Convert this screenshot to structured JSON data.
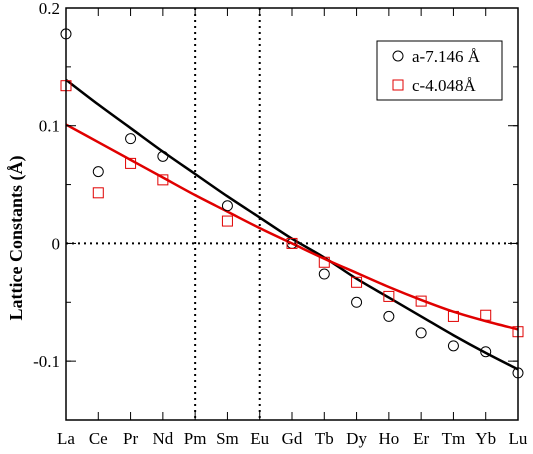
{
  "chart_data": {
    "type": "scatter",
    "title": "",
    "xlabel": "",
    "ylabel": "Lattice Constants  (Å)",
    "categories": [
      "La",
      "Ce",
      "Pr",
      "Nd",
      "Pm",
      "Sm",
      "Eu",
      "Gd",
      "Tb",
      "Dy",
      "Ho",
      "Er",
      "Tm",
      "Yb",
      "Lu"
    ],
    "ylim": [
      -0.15,
      0.2
    ],
    "yticks": [
      0.2,
      0.1,
      0,
      -0.1
    ],
    "ytick_labels": [
      "0.2",
      "0.1",
      "0",
      "-0.1"
    ],
    "reference_lines": {
      "horizontal": [
        0
      ],
      "vertical_categories": [
        "Pm",
        "Eu"
      ]
    },
    "legend_position": "top-right",
    "series": [
      {
        "name": "a-7.146 Å",
        "marker": "circle",
        "color": "#000000",
        "points": [
          [
            "La",
            0.178
          ],
          [
            "Ce",
            0.061
          ],
          [
            "Pr",
            0.089
          ],
          [
            "Nd",
            0.074
          ],
          [
            "Sm",
            0.032
          ],
          [
            "Gd",
            0.0
          ],
          [
            "Tb",
            -0.026
          ],
          [
            "Dy",
            -0.05
          ],
          [
            "Ho",
            -0.062
          ],
          [
            "Er",
            -0.076
          ],
          [
            "Tm",
            -0.087
          ],
          [
            "Yb",
            -0.092
          ],
          [
            "Lu",
            -0.11
          ]
        ],
        "fit": [
          [
            "La",
            0.139
          ],
          [
            "Ce",
            0.118
          ],
          [
            "Pr",
            0.098
          ],
          [
            "Nd",
            0.078
          ],
          [
            "Pm",
            0.059
          ],
          [
            "Sm",
            0.04
          ],
          [
            "Eu",
            0.022
          ],
          [
            "Gd",
            0.004
          ],
          [
            "Tb",
            -0.012
          ],
          [
            "Dy",
            -0.03
          ],
          [
            "Ho",
            -0.046
          ],
          [
            "Er",
            -0.062
          ],
          [
            "Tm",
            -0.078
          ],
          [
            "Yb",
            -0.093
          ],
          [
            "Lu",
            -0.107
          ]
        ],
        "fit_color": "#000000"
      },
      {
        "name": "c-4.048Å",
        "marker": "square",
        "color": "#e00000",
        "points": [
          [
            "La",
            0.134
          ],
          [
            "Ce",
            0.043
          ],
          [
            "Pr",
            0.068
          ],
          [
            "Nd",
            0.054
          ],
          [
            "Sm",
            0.019
          ],
          [
            "Gd",
            0.0
          ],
          [
            "Tb",
            -0.016
          ],
          [
            "Dy",
            -0.033
          ],
          [
            "Ho",
            -0.045
          ],
          [
            "Er",
            -0.049
          ],
          [
            "Tm",
            -0.062
          ],
          [
            "Yb",
            -0.061
          ],
          [
            "Lu",
            -0.075
          ]
        ],
        "fit": [
          [
            "La",
            0.101
          ],
          [
            "Ce",
            0.086
          ],
          [
            "Pr",
            0.071
          ],
          [
            "Nd",
            0.056
          ],
          [
            "Pm",
            0.041
          ],
          [
            "Sm",
            0.027
          ],
          [
            "Eu",
            0.013
          ],
          [
            "Gd",
            0.0
          ],
          [
            "Tb",
            -0.013
          ],
          [
            "Dy",
            -0.025
          ],
          [
            "Ho",
            -0.037
          ],
          [
            "Er",
            -0.048
          ],
          [
            "Tm",
            -0.058
          ],
          [
            "Yb",
            -0.066
          ],
          [
            "Lu",
            -0.073
          ]
        ],
        "fit_color": "#e00000"
      }
    ]
  }
}
